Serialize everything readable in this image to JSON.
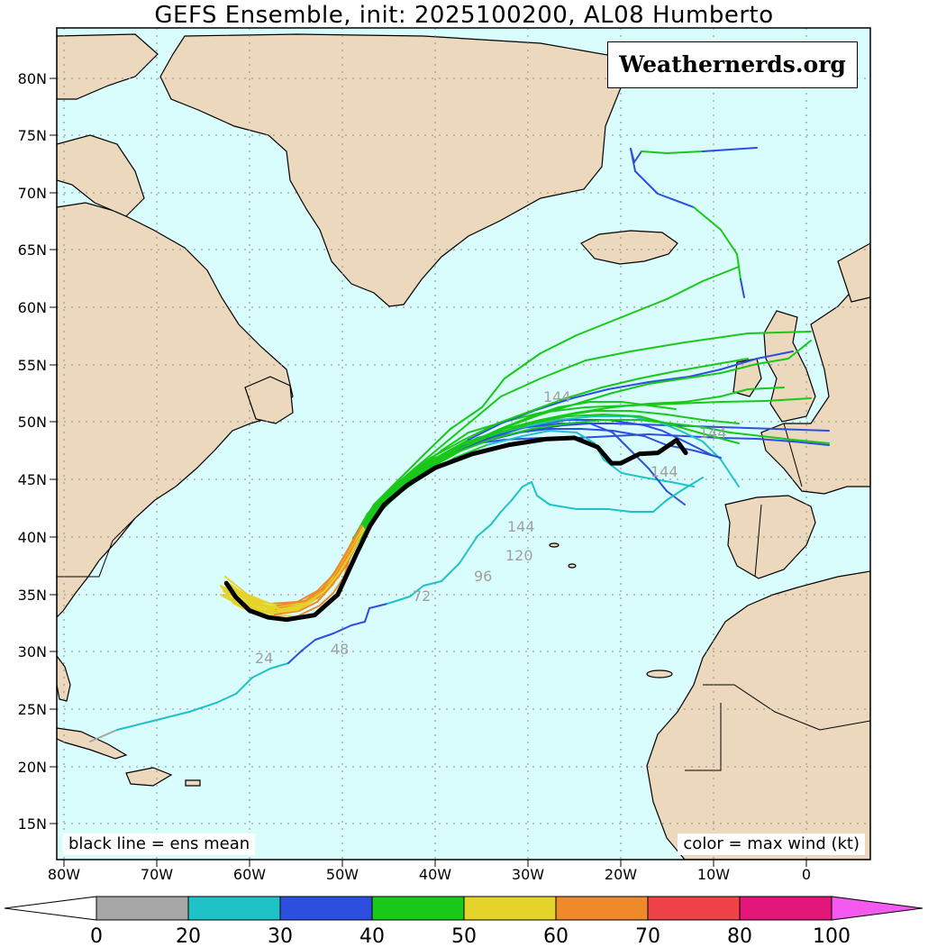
{
  "title": "GEFS Ensemble, init: 2025100200, AL08 Humberto",
  "watermark": "Weathernerds.org",
  "legend_note_left": "black line = ens mean",
  "legend_note_right": "color = max wind (kt)",
  "lat_labels": [
    "80N",
    "75N",
    "70N",
    "65N",
    "60N",
    "55N",
    "50N",
    "45N",
    "40N",
    "35N",
    "30N",
    "25N",
    "20N",
    "15N"
  ],
  "lon_labels": [
    "80W",
    "70W",
    "60W",
    "50W",
    "40W",
    "30W",
    "20W",
    "10W",
    "0"
  ],
  "colorbar": {
    "ticks": [
      "0",
      "20",
      "30",
      "40",
      "50",
      "60",
      "70",
      "80",
      "100"
    ],
    "colors": [
      "#a7a7a7",
      "#1fc2c7",
      "#2c4fe0",
      "#19c819",
      "#e4d42a",
      "#ee8a2a",
      "#ee4448",
      "#e4167a"
    ],
    "low_end": "#ffffff",
    "high_end": "#f45af0"
  },
  "map_colors": {
    "ocean": "#d9fcfc",
    "land": "#ecd9bd",
    "mean_track": "#000000"
  },
  "hour_labels": [
    "24",
    "48",
    "72",
    "96",
    "120",
    "144",
    "144",
    "144",
    "144"
  ],
  "mean_track": [
    [
      -62.5,
      36
    ],
    [
      -61.5,
      34.8
    ],
    [
      -60,
      33.6
    ],
    [
      -58,
      33
    ],
    [
      -56,
      32.8
    ],
    [
      -53,
      33.2
    ],
    [
      -50.5,
      35
    ],
    [
      -48.5,
      38.5
    ],
    [
      -47,
      41
    ],
    [
      -45.5,
      42.8
    ],
    [
      -43,
      44.5
    ],
    [
      -40,
      46
    ],
    [
      -36,
      47.2
    ],
    [
      -32,
      48
    ],
    [
      -28,
      48.5
    ],
    [
      -25,
      48.6
    ],
    [
      -22.5,
      47.8
    ],
    [
      -21,
      46.4
    ],
    [
      -20,
      46.4
    ],
    [
      -18,
      47.2
    ],
    [
      -16,
      47.3
    ],
    [
      -14,
      48.4
    ],
    [
      -13,
      47.3
    ]
  ]
}
